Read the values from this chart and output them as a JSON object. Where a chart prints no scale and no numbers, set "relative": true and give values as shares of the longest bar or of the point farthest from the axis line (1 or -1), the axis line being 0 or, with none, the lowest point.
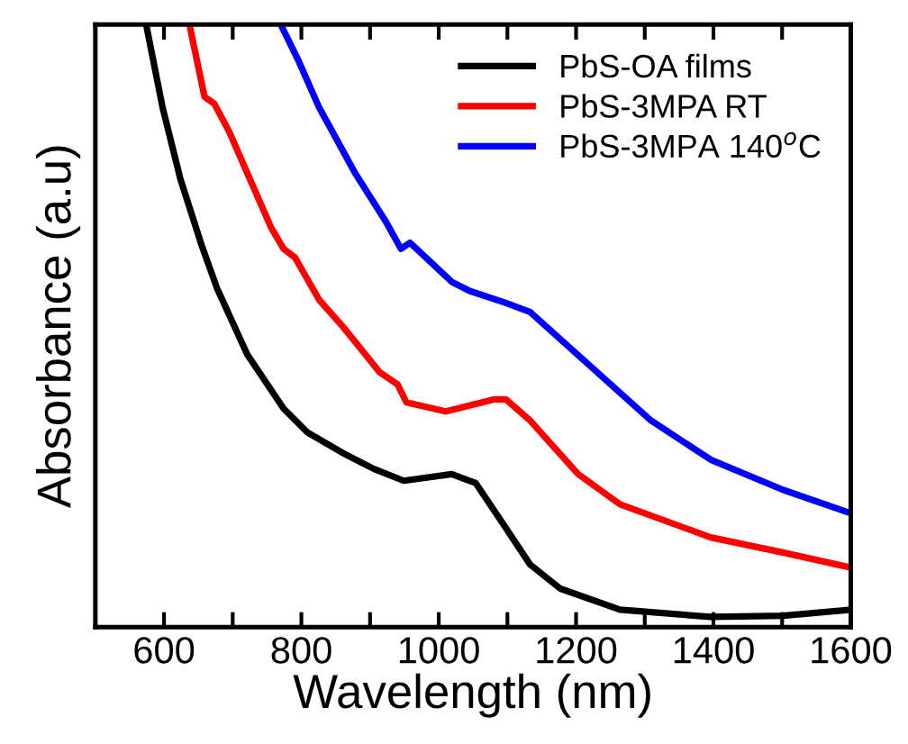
{
  "chart_data": {
    "type": "line",
    "xlabel": "Wavelength (nm)",
    "ylabel": "Absorbance (a.u)",
    "relative": true,
    "xlim": [
      500,
      1600
    ],
    "xticks": [
      600,
      {
        "value": 700,
        "label": null
      },
      800,
      {
        "value": 900,
        "label": null
      },
      1000,
      {
        "value": 1100,
        "label": null
      },
      1200,
      {
        "value": 1300,
        "label": null
      },
      1400,
      {
        "value": 1500,
        "label": null
      },
      1600
    ],
    "legend": "top right",
    "line_style": "solid",
    "marker": "none",
    "series": [
      {
        "name": "PbS-OA films",
        "color": "#000000",
        "x": [
          574,
          598,
          624,
          655,
          677,
          721,
          774,
          809,
          862,
          905,
          949,
          1019,
          1054,
          1098,
          1133,
          1177,
          1264,
          1396,
          1501,
          1600
        ],
        "values": [
          1.0,
          0.862,
          0.743,
          0.633,
          0.563,
          0.453,
          0.363,
          0.323,
          0.288,
          0.263,
          0.243,
          0.254,
          0.239,
          0.164,
          0.104,
          0.064,
          0.029,
          0.017,
          0.019,
          0.029
        ]
      },
      {
        "name": "PbS-3MPA RT",
        "color": "#ff0000",
        "x": [
          637,
          659,
          673,
          695,
          756,
          774,
          791,
          826,
          861,
          914,
          940,
          953,
          1010,
          1080,
          1098,
          1133,
          1203,
          1264,
          1396,
          1501,
          1600
        ],
        "values": [
          1.0,
          0.88,
          0.869,
          0.822,
          0.663,
          0.628,
          0.613,
          0.543,
          0.498,
          0.423,
          0.403,
          0.373,
          0.358,
          0.378,
          0.378,
          0.343,
          0.254,
          0.204,
          0.149,
          0.124,
          0.099
        ]
      },
      {
        "name": "PbS-3MPA 140$^{o}$C",
        "color": "#0000ff",
        "x": [
          770,
          795,
          826,
          879,
          923,
          945,
          958,
          1019,
          1045,
          1098,
          1133,
          1221,
          1309,
          1396,
          1501,
          1600
        ],
        "values": [
          1.0,
          0.942,
          0.862,
          0.752,
          0.673,
          0.628,
          0.638,
          0.573,
          0.558,
          0.538,
          0.523,
          0.433,
          0.343,
          0.278,
          0.228,
          0.189
        ]
      }
    ]
  }
}
